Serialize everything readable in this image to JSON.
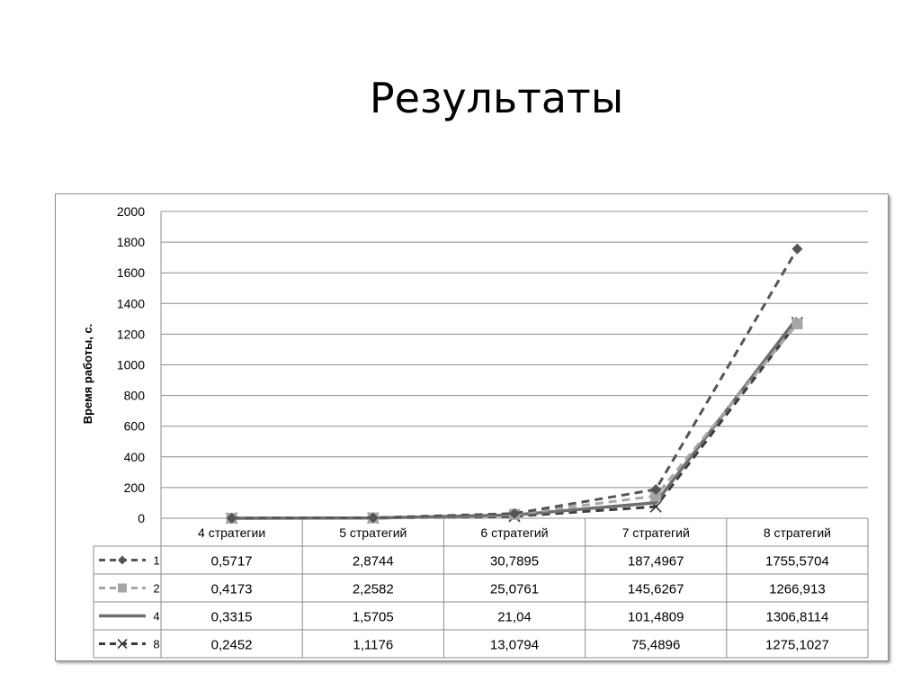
{
  "slide": {
    "title": "Результаты"
  },
  "colors": {
    "axis": "#8c8c8c",
    "grid": "#8c8c8c",
    "text": "#000000"
  },
  "chart_data": {
    "type": "line",
    "title": "",
    "xlabel": "",
    "ylabel": "Время работы, с.",
    "ylim": [
      0,
      2000
    ],
    "yticks": [
      "0",
      "200",
      "400",
      "600",
      "800",
      "1000",
      "1200",
      "1400",
      "1600",
      "1800",
      "2000"
    ],
    "grid": true,
    "legend": "data-table",
    "categories": [
      "4 стратегии",
      "5 стратегий",
      "6 стратегий",
      "7 стратегий",
      "8 стратегий"
    ],
    "series": [
      {
        "name": "1",
        "values": [
          0.5717,
          2.8744,
          30.7895,
          187.4967,
          1755.5704
        ],
        "labels": [
          "0,5717",
          "2,8744",
          "30,7895",
          "187,4967",
          "1755,5704"
        ],
        "color": "#555555",
        "dash": "dash",
        "marker": "diamond"
      },
      {
        "name": "2",
        "values": [
          0.4173,
          2.2582,
          25.0761,
          145.6267,
          1266.913
        ],
        "labels": [
          "0,4173",
          "2,2582",
          "25,0761",
          "145,6267",
          "1266,913"
        ],
        "color": "#a6a6a6",
        "dash": "dash",
        "marker": "square"
      },
      {
        "name": "4",
        "values": [
          0.3315,
          1.5705,
          21.04,
          101.4809,
          1306.8114
        ],
        "labels": [
          "0,3315",
          "1,5705",
          "21,04",
          "101,4809",
          "1306,8114"
        ],
        "color": "#6e6e6e",
        "dash": "solid",
        "marker": "none"
      },
      {
        "name": "8",
        "values": [
          0.2452,
          1.1176,
          13.0794,
          75.4896,
          1275.1027
        ],
        "labels": [
          "0,2452",
          "1,1176",
          "13,0794",
          "75,4896",
          "1275,1027"
        ],
        "color": "#3a3a3a",
        "dash": "dash",
        "marker": "x"
      }
    ]
  }
}
